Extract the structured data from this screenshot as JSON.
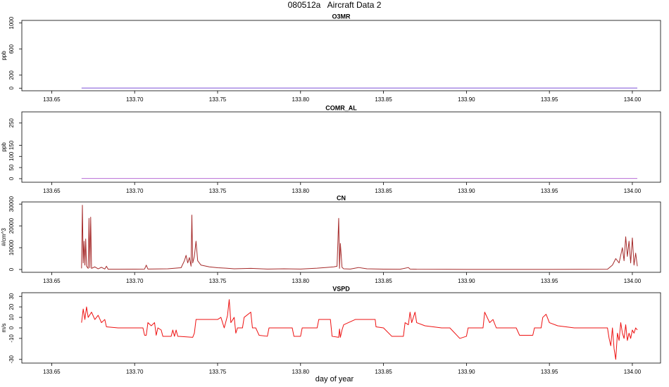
{
  "title": "080512a   Aircraft Data 2",
  "x_label": "day of year",
  "chart_data": [
    {
      "type": "line",
      "title": "O3MR",
      "y_label": "ppb",
      "color": "#7b4fd6",
      "x": [
        133.668,
        134.003
      ],
      "values": [
        2,
        2
      ],
      "xlim": [
        133.632,
        134.017
      ],
      "xticks": [
        133.65,
        {
          "value": 133.7,
          "label": "133.70"
        },
        133.75,
        {
          "value": 133.8,
          "label": "133.80"
        },
        133.85,
        {
          "value": 133.9,
          "label": "133.90"
        },
        133.95,
        {
          "value": 134,
          "label": "134.00"
        }
      ],
      "ylim": [
        -40,
        1040
      ],
      "yticks": [
        0,
        200,
        600,
        1000
      ]
    },
    {
      "type": "line",
      "title": "COMR_AL",
      "y_label": "ppb",
      "color": "#b86bd6",
      "x": [
        133.668,
        134.003
      ],
      "values": [
        1,
        1
      ],
      "xlim": [
        133.632,
        134.017
      ],
      "xticks": [
        133.65,
        {
          "value": 133.7,
          "label": "133.70"
        },
        133.75,
        {
          "value": 133.8,
          "label": "133.80"
        },
        133.85,
        {
          "value": 133.9,
          "label": "133.90"
        },
        133.95,
        {
          "value": 134,
          "label": "134.00"
        }
      ],
      "ylim": [
        -16,
        300
      ],
      "yticks": [
        0,
        50,
        100,
        150,
        250
      ]
    },
    {
      "type": "line",
      "title": "CN",
      "y_label": "#/cm^3",
      "color": "#a52a2a",
      "x": [
        133.668,
        133.6685,
        133.669,
        133.6695,
        133.67,
        133.6705,
        133.671,
        133.672,
        133.6725,
        133.673,
        133.6735,
        133.674,
        133.676,
        133.678,
        133.68,
        133.682,
        133.683,
        133.684,
        133.69,
        133.7,
        133.706,
        133.707,
        133.708,
        133.72,
        133.728,
        133.73,
        133.731,
        133.732,
        133.733,
        133.734,
        133.7345,
        133.735,
        133.736,
        133.737,
        133.738,
        133.74,
        133.745,
        133.75,
        133.755,
        133.76,
        133.77,
        133.78,
        133.79,
        133.8,
        133.81,
        133.815,
        133.82,
        133.822,
        133.823,
        133.8235,
        133.824,
        133.825,
        133.826,
        133.83,
        133.835,
        133.84,
        133.85,
        133.86,
        133.865,
        133.866,
        133.87,
        133.9,
        133.95,
        133.985,
        133.988,
        133.99,
        133.992,
        133.994,
        133.995,
        133.996,
        133.997,
        133.998,
        133.999,
        134,
        134.001,
        134.002,
        134.003
      ],
      "values": [
        500,
        29500,
        3000,
        13000,
        2000,
        14000,
        1500,
        500,
        23500,
        800,
        24000,
        500,
        1200,
        300,
        1000,
        200,
        1500,
        100,
        100,
        150,
        200,
        2000,
        200,
        300,
        800,
        4000,
        6500,
        3000,
        5500,
        1500,
        25000,
        3000,
        6000,
        13000,
        4000,
        2000,
        1200,
        800,
        600,
        300,
        500,
        200,
        300,
        200,
        600,
        900,
        1200,
        1500,
        23500,
        500,
        12000,
        1000,
        300,
        200,
        900,
        300,
        150,
        100,
        900,
        200,
        100,
        50,
        50,
        100,
        2000,
        5000,
        3000,
        10000,
        4000,
        15000,
        6000,
        13000,
        3000,
        14500,
        2000,
        7500,
        1500
      ],
      "xlim": [
        133.632,
        134.017
      ],
      "xticks": [
        133.65,
        {
          "value": 133.7,
          "label": "133.70"
        },
        133.75,
        {
          "value": 133.8,
          "label": "133.80"
        },
        133.85,
        {
          "value": 133.9,
          "label": "133.90"
        },
        133.95,
        {
          "value": 134,
          "label": "134.00"
        }
      ],
      "ylim": [
        -1300,
        31000
      ],
      "yticks": [
        0,
        10000,
        20000,
        30000
      ]
    },
    {
      "type": "line",
      "title": "VSPD",
      "y_label": "m/s",
      "color": "#ee1111",
      "x": [
        133.668,
        133.669,
        133.67,
        133.671,
        133.672,
        133.674,
        133.676,
        133.678,
        133.68,
        133.682,
        133.683,
        133.69,
        133.7,
        133.705,
        133.706,
        133.707,
        133.708,
        133.71,
        133.712,
        133.713,
        133.714,
        133.716,
        133.717,
        133.722,
        133.723,
        133.724,
        133.725,
        133.726,
        133.735,
        133.736,
        133.737,
        133.745,
        133.75,
        133.752,
        133.754,
        133.756,
        133.757,
        133.758,
        133.76,
        133.761,
        133.762,
        133.765,
        133.766,
        133.77,
        133.771,
        133.773,
        133.775,
        133.78,
        133.781,
        133.79,
        133.795,
        133.796,
        133.8,
        133.801,
        133.81,
        133.811,
        133.818,
        133.819,
        133.823,
        133.8235,
        133.824,
        133.825,
        133.826,
        133.833,
        133.845,
        133.8455,
        133.85,
        133.855,
        133.862,
        133.863,
        133.865,
        133.866,
        133.867,
        133.869,
        133.87,
        133.875,
        133.885,
        133.89,
        133.896,
        133.9,
        133.901,
        133.91,
        133.911,
        133.914,
        133.916,
        133.918,
        133.93,
        133.932,
        133.94,
        133.941,
        133.945,
        133.946,
        133.948,
        133.95,
        133.955,
        133.965,
        133.985,
        133.986,
        133.987,
        133.988,
        133.989,
        133.99,
        133.991,
        133.992,
        133.993,
        133.994,
        133.995,
        133.996,
        133.997,
        133.998,
        133.999,
        134,
        134.001,
        134.002,
        134.003
      ],
      "values": [
        5,
        18,
        8,
        20,
        10,
        15,
        8,
        12,
        5,
        8,
        1,
        0,
        0,
        0,
        -7,
        -7,
        5,
        2,
        5,
        -7,
        0,
        -2,
        -8,
        -8,
        -2,
        -8,
        -2,
        -8,
        -9,
        -5,
        8,
        8,
        8,
        10,
        0,
        12,
        27,
        5,
        10,
        -5,
        0,
        0,
        10,
        15,
        0,
        0,
        -7,
        -8,
        0,
        0,
        0,
        -8,
        -8,
        0,
        0,
        8,
        8,
        -8,
        -9,
        -1,
        -9,
        -2,
        3,
        8,
        8,
        1,
        0,
        -8,
        -8,
        5,
        3,
        15,
        5,
        15,
        5,
        2,
        0,
        0,
        -10,
        -8,
        0,
        0,
        15,
        5,
        8,
        0,
        0,
        -7,
        -7,
        0,
        0,
        10,
        13,
        5,
        2,
        0,
        0,
        -10,
        -17,
        0,
        -20,
        -30,
        -5,
        -12,
        5,
        -5,
        -10,
        3,
        -12,
        -5,
        -10,
        -2,
        -5,
        0,
        -2
      ],
      "xlim": [
        133.632,
        134.017
      ],
      "xticks": [
        133.65,
        {
          "value": 133.7,
          "label": "133.70"
        },
        133.75,
        {
          "value": 133.8,
          "label": "133.80"
        },
        133.85,
        {
          "value": 133.9,
          "label": "133.90"
        },
        133.95,
        {
          "value": 134,
          "label": "134.00"
        }
      ],
      "ylim": [
        -33.5,
        33.5
      ],
      "yticks": [
        -30,
        -10,
        0,
        10,
        20,
        30
      ]
    }
  ]
}
